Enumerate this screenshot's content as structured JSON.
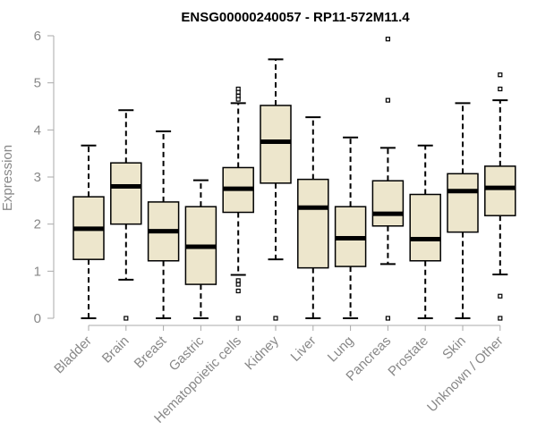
{
  "chart_data": {
    "type": "boxplot",
    "title": "ENSG00000240057 - RP11-572M11.4",
    "xlabel": "",
    "ylabel": "Expression",
    "ylim": [
      0,
      6
    ],
    "yticks": [
      0,
      1,
      2,
      3,
      4,
      5,
      6
    ],
    "box_color": "#EDE6CC",
    "categories": [
      "Bladder",
      "Brain",
      "Breast",
      "Gastric",
      "Hematopoietic cells",
      "Kidney",
      "Liver",
      "Lung",
      "Pancreas",
      "Prostate",
      "Skin",
      "Unknown / Other"
    ],
    "boxes": [
      {
        "whisker_low": 0,
        "q1": 1.25,
        "median": 1.9,
        "q3": 2.58,
        "whisker_high": 3.67,
        "outliers": []
      },
      {
        "whisker_low": 0.82,
        "q1": 2.0,
        "median": 2.8,
        "q3": 3.3,
        "whisker_high": 4.42,
        "outliers": [
          0
        ]
      },
      {
        "whisker_low": 0,
        "q1": 1.22,
        "median": 1.85,
        "q3": 2.47,
        "whisker_high": 3.97,
        "outliers": []
      },
      {
        "whisker_low": 0,
        "q1": 0.72,
        "median": 1.52,
        "q3": 2.37,
        "whisker_high": 2.93,
        "outliers": []
      },
      {
        "whisker_low": 0.92,
        "q1": 2.25,
        "median": 2.75,
        "q3": 3.2,
        "whisker_high": 4.57,
        "outliers": [
          4.87,
          4.8,
          4.72,
          4.65,
          0.8,
          0.72,
          0.58,
          0
        ]
      },
      {
        "whisker_low": 1.25,
        "q1": 2.87,
        "median": 3.75,
        "q3": 4.52,
        "whisker_high": 5.5,
        "outliers": [
          0
        ]
      },
      {
        "whisker_low": 0,
        "q1": 1.07,
        "median": 2.35,
        "q3": 2.95,
        "whisker_high": 4.27,
        "outliers": []
      },
      {
        "whisker_low": 0,
        "q1": 1.1,
        "median": 1.7,
        "q3": 2.37,
        "whisker_high": 3.84,
        "outliers": []
      },
      {
        "whisker_low": 1.15,
        "q1": 1.96,
        "median": 2.22,
        "q3": 2.92,
        "whisker_high": 3.62,
        "outliers": [
          5.93,
          4.63,
          0
        ]
      },
      {
        "whisker_low": 0,
        "q1": 1.22,
        "median": 1.68,
        "q3": 2.63,
        "whisker_high": 3.67,
        "outliers": []
      },
      {
        "whisker_low": 0,
        "q1": 1.83,
        "median": 2.7,
        "q3": 3.07,
        "whisker_high": 4.57,
        "outliers": []
      },
      {
        "whisker_low": 0.93,
        "q1": 2.18,
        "median": 2.77,
        "q3": 3.23,
        "whisker_high": 4.63,
        "outliers": [
          5.17,
          4.87,
          0.47,
          0
        ]
      }
    ]
  }
}
